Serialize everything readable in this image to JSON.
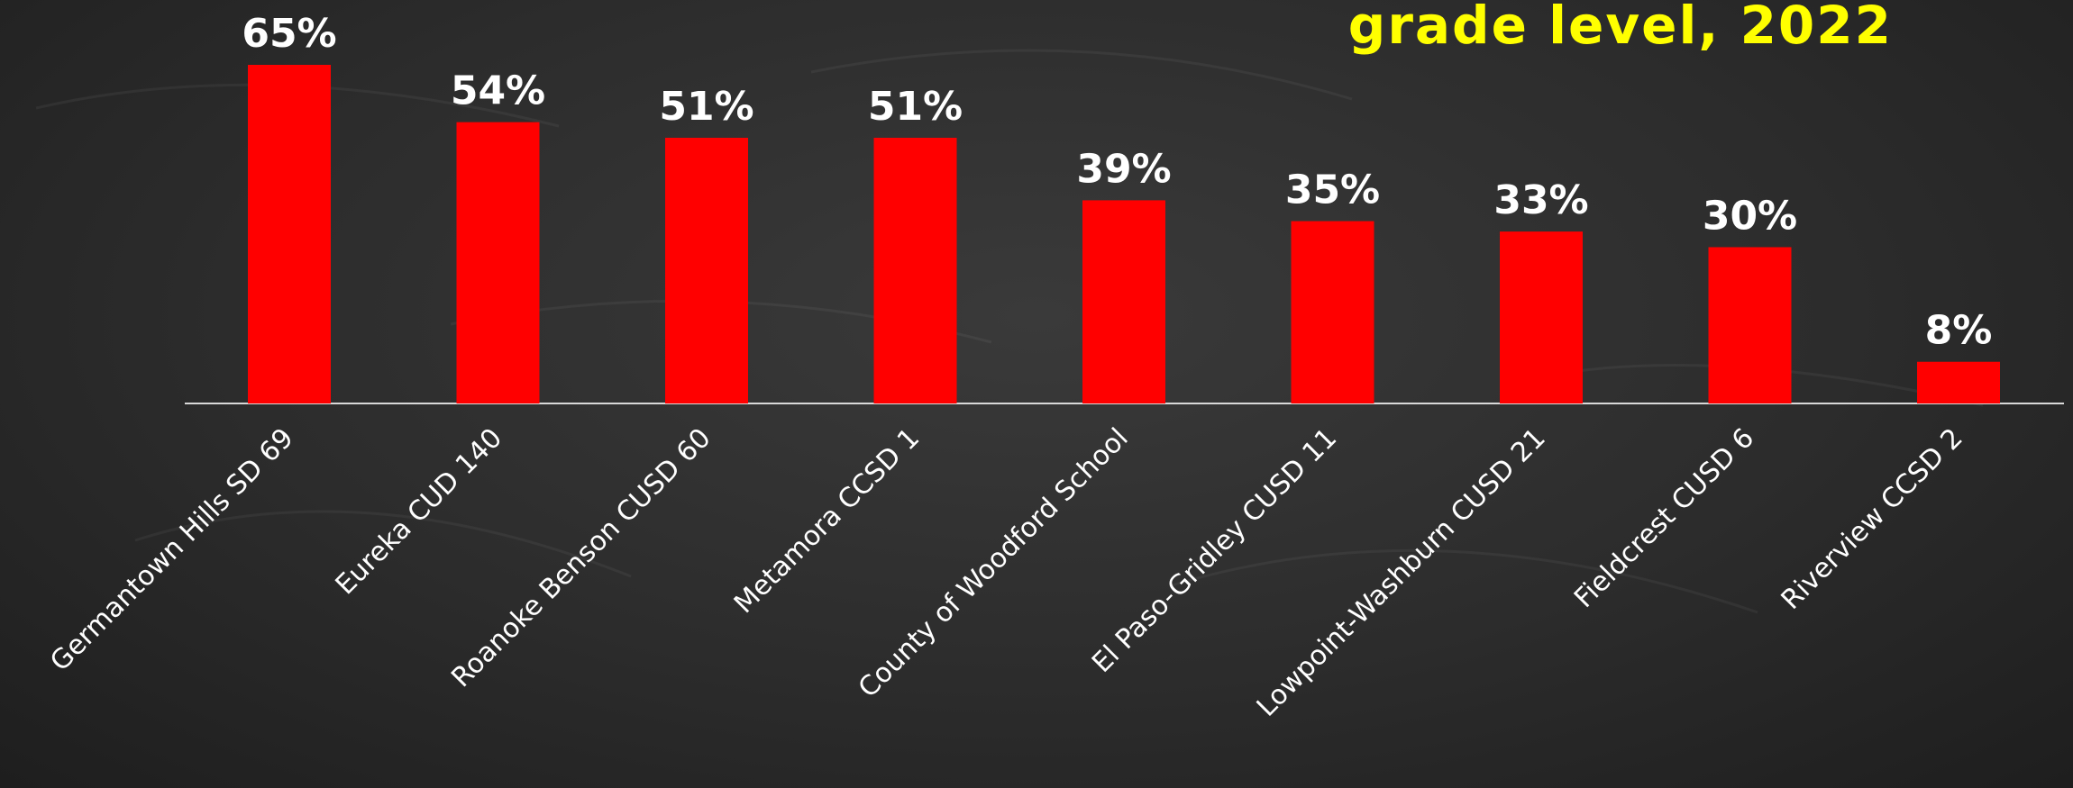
{
  "chart_data": {
    "type": "bar",
    "title": "grade level, 2022",
    "categories": [
      "Germantown Hills SD 69",
      "Eureka CUD 140",
      "Roanoke Benson CUSD 60",
      "Metamora CCSD 1",
      "County of Woodford School",
      "El Paso-Gridley CUSD 11",
      "Lowpoint-Washburn CUSD 21",
      "Fieldcrest CUSD 6",
      "Riverview CCSD 2"
    ],
    "values": [
      65,
      54,
      51,
      51,
      39,
      35,
      33,
      30,
      8
    ],
    "data_labels": [
      "65%",
      "54%",
      "51%",
      "51%",
      "39%",
      "35%",
      "33%",
      "30%",
      "8%"
    ],
    "unit": "%",
    "ylim": [
      0,
      70
    ],
    "grid": false,
    "legend": "none",
    "colors": {
      "bar": "#ff0000",
      "title": "#ffff00",
      "labels": "#ffffff",
      "background": "#2e2e2e"
    }
  }
}
